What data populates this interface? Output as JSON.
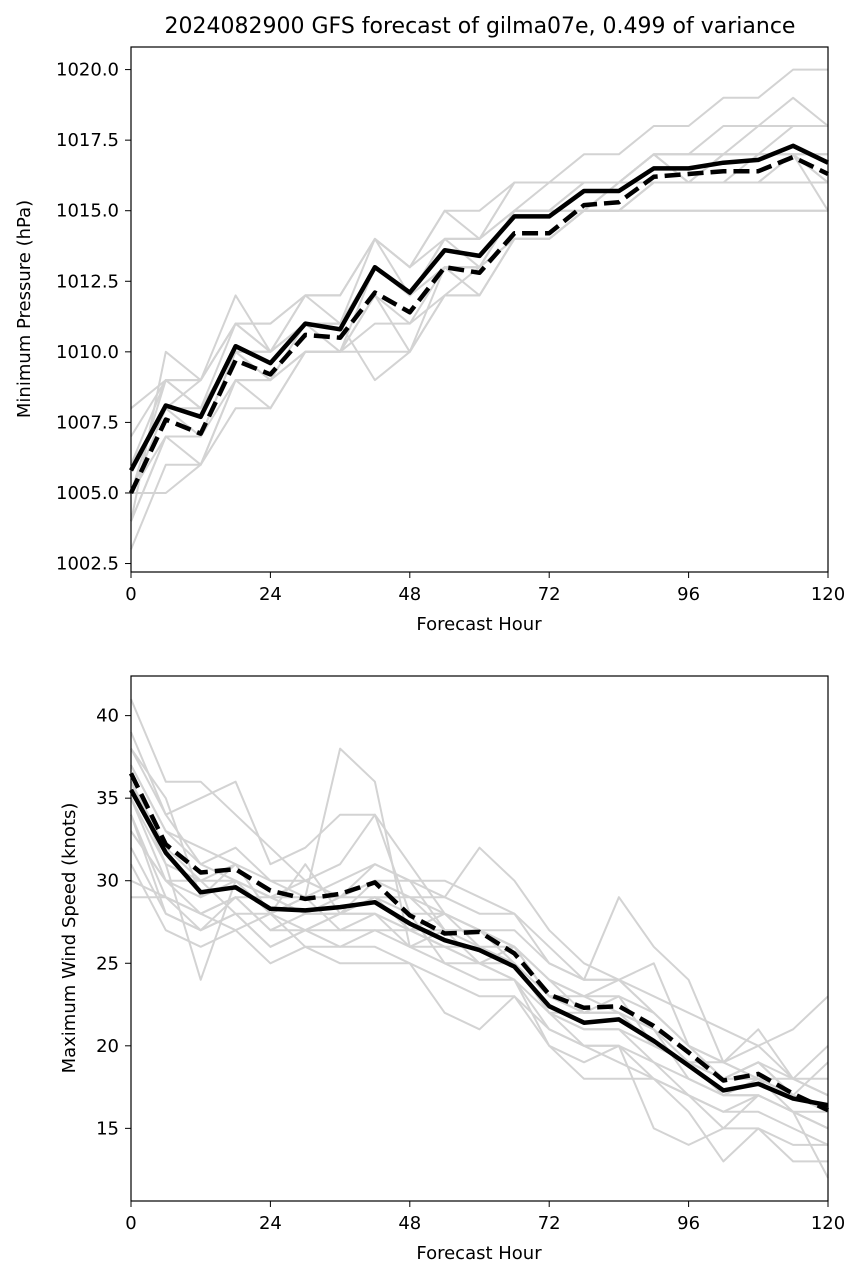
{
  "chart_data": [
    {
      "type": "line",
      "title": "2024082900 GFS forecast of gilma07e, 0.499 of variance",
      "xlabel": "Forecast Hour",
      "ylabel": "Minimum Pressure (hPa)",
      "xlim": [
        0,
        120
      ],
      "ylim": [
        1002.2,
        1020.8
      ],
      "xticks": [
        0,
        24,
        48,
        72,
        96,
        120
      ],
      "xtick_labels": [
        "0",
        "24",
        "48",
        "72",
        "96",
        "120"
      ],
      "yticks": [
        1002.5,
        1005.0,
        1007.5,
        1010.0,
        1012.5,
        1015.0,
        1017.5,
        1020.0
      ],
      "ytick_labels": [
        "1002.5",
        "1005.0",
        "1007.5",
        "1010.0",
        "1012.5",
        "1015.0",
        "1017.5",
        "1020.0"
      ],
      "x": [
        0,
        6,
        12,
        18,
        24,
        30,
        36,
        42,
        48,
        54,
        60,
        66,
        72,
        78,
        84,
        90,
        96,
        102,
        108,
        114,
        120
      ],
      "series": [
        {
          "style": "solid",
          "color": "#000000",
          "values": [
            1005.8,
            1008.1,
            1007.7,
            1010.2,
            1009.6,
            1011.0,
            1010.8,
            1013.0,
            1012.1,
            1013.6,
            1013.4,
            1014.8,
            1014.8,
            1015.7,
            1015.7,
            1016.5,
            1016.5,
            1016.7,
            1016.8,
            1017.3,
            1016.7
          ]
        },
        {
          "style": "dashed",
          "color": "#000000",
          "values": [
            1005.0,
            1007.6,
            1007.1,
            1009.7,
            1009.2,
            1010.6,
            1010.5,
            1012.1,
            1011.4,
            1013.0,
            1012.8,
            1014.2,
            1014.2,
            1015.2,
            1015.3,
            1016.2,
            1016.3,
            1016.4,
            1016.4,
            1016.9,
            1016.3
          ]
        }
      ],
      "members_color": "#d3d3d3",
      "members": [
        [
          1004,
          1010,
          1009,
          1012,
          1010,
          1012,
          1012,
          1014,
          1013,
          1015,
          1015,
          1016,
          1016,
          1017,
          1017,
          1018,
          1018,
          1019,
          1019,
          1020,
          1020
        ],
        [
          1005,
          1009,
          1008,
          1011,
          1010,
          1011,
          1011,
          1013,
          1012,
          1014,
          1014,
          1015,
          1015,
          1016,
          1016,
          1017,
          1017,
          1017,
          1018,
          1019,
          1018
        ],
        [
          1006,
          1008,
          1008,
          1010,
          1009,
          1011,
          1011,
          1013,
          1012,
          1014,
          1013,
          1015,
          1015,
          1016,
          1016,
          1017,
          1017,
          1018,
          1018,
          1018,
          1018
        ],
        [
          1005,
          1007,
          1007,
          1009,
          1009,
          1010,
          1010,
          1012,
          1011,
          1013,
          1013,
          1014,
          1014,
          1015,
          1015,
          1016,
          1016,
          1016,
          1016,
          1016,
          1016
        ],
        [
          1004,
          1007,
          1007,
          1010,
          1010,
          1011,
          1010,
          1013,
          1012,
          1013,
          1013,
          1015,
          1015,
          1015,
          1015,
          1016,
          1016,
          1016,
          1016,
          1017,
          1016
        ],
        [
          1003,
          1006,
          1006,
          1009,
          1008,
          1010,
          1010,
          1012,
          1010,
          1013,
          1012,
          1014,
          1014,
          1015,
          1015,
          1015,
          1015,
          1015,
          1015,
          1015,
          1015
        ],
        [
          1008,
          1009,
          1009,
          1011,
          1011,
          1012,
          1012,
          1014,
          1013,
          1014,
          1014,
          1016,
          1016,
          1016,
          1016,
          1017,
          1016,
          1017,
          1017,
          1017,
          1017
        ],
        [
          1006,
          1008,
          1009,
          1011,
          1010,
          1012,
          1011,
          1014,
          1012,
          1014,
          1014,
          1015,
          1016,
          1016,
          1016,
          1016,
          1016,
          1016,
          1017,
          1017,
          1015
        ],
        [
          1005,
          1005,
          1006,
          1009,
          1009,
          1010,
          1010,
          1011,
          1011,
          1012,
          1012,
          1014,
          1014,
          1015,
          1015,
          1016,
          1016,
          1016,
          1016,
          1016,
          1016
        ],
        [
          1007,
          1009,
          1008,
          1010,
          1010,
          1011,
          1011,
          1009,
          1010,
          1012,
          1013,
          1014,
          1014,
          1015,
          1016,
          1016,
          1016,
          1016,
          1016,
          1017,
          1016
        ],
        [
          1004,
          1007,
          1006,
          1008,
          1008,
          1010,
          1010,
          1010,
          1010,
          1012,
          1012,
          1014,
          1014,
          1015,
          1015,
          1015,
          1015,
          1015,
          1015,
          1015,
          1015
        ],
        [
          1006,
          1009,
          1009,
          1011,
          1011,
          1012,
          1012,
          1014,
          1013,
          1015,
          1014,
          1016,
          1016,
          1016,
          1016,
          1017,
          1017,
          1017,
          1017,
          1018,
          1018
        ],
        [
          1005,
          1008,
          1007,
          1010,
          1009,
          1011,
          1011,
          1013,
          1012,
          1013,
          1013,
          1015,
          1015,
          1015,
          1016,
          1017,
          1016,
          1017,
          1017,
          1017,
          1017
        ]
      ]
    },
    {
      "type": "line",
      "title": "",
      "xlabel": "Forecast Hour",
      "ylabel": "Maximum Wind Speed (knots)",
      "xlim": [
        0,
        120
      ],
      "ylim": [
        10.6,
        42.4
      ],
      "xticks": [
        0,
        24,
        48,
        72,
        96,
        120
      ],
      "xtick_labels": [
        "0",
        "24",
        "48",
        "72",
        "96",
        "120"
      ],
      "yticks": [
        15,
        20,
        25,
        30,
        35,
        40
      ],
      "ytick_labels": [
        "15",
        "20",
        "25",
        "30",
        "35",
        "40"
      ],
      "x": [
        0,
        6,
        12,
        18,
        24,
        30,
        36,
        42,
        48,
        54,
        60,
        66,
        72,
        78,
        84,
        90,
        96,
        102,
        108,
        114,
        120
      ],
      "series": [
        {
          "style": "solid",
          "color": "#000000",
          "values": [
            35.5,
            31.7,
            29.3,
            29.6,
            28.3,
            28.2,
            28.4,
            28.7,
            27.4,
            26.4,
            25.8,
            24.8,
            22.4,
            21.4,
            21.6,
            20.3,
            18.8,
            17.3,
            17.7,
            16.8,
            16.4
          ]
        },
        {
          "style": "dashed",
          "color": "#000000",
          "values": [
            36.5,
            32.2,
            30.5,
            30.7,
            29.4,
            28.9,
            29.2,
            29.9,
            27.9,
            26.8,
            26.9,
            25.6,
            23.1,
            22.3,
            22.4,
            21.2,
            19.6,
            17.9,
            18.3,
            17.1,
            16.1
          ]
        }
      ],
      "members_color": "#d3d3d3",
      "members": [
        [
          41,
          36,
          36,
          34,
          32,
          30,
          29,
          30,
          29,
          28,
          27,
          26,
          24,
          23,
          24,
          22,
          20,
          19,
          20,
          18,
          17
        ],
        [
          39,
          34,
          31,
          30,
          29,
          28,
          28,
          29,
          27,
          26,
          26,
          25,
          22,
          21,
          21,
          20,
          19,
          18,
          18,
          17,
          16
        ],
        [
          38,
          35,
          29,
          31,
          28,
          29,
          38,
          36,
          26,
          27,
          25,
          24,
          22,
          22,
          22,
          21,
          18,
          17,
          18,
          17,
          16
        ],
        [
          37,
          33,
          31,
          32,
          30,
          30,
          31,
          34,
          28,
          28,
          26,
          25,
          23,
          22,
          22,
          21,
          19,
          18,
          18,
          16,
          15
        ],
        [
          36,
          31,
          24,
          30,
          28,
          27,
          28,
          28,
          26,
          25,
          24,
          24,
          21,
          20,
          20,
          19,
          17,
          16,
          17,
          16,
          15
        ],
        [
          36,
          32,
          30,
          28,
          26,
          27,
          27,
          28,
          27,
          27,
          27,
          25,
          22,
          21,
          21,
          19,
          18,
          17,
          17,
          16,
          16
        ],
        [
          35,
          30,
          28,
          29,
          27,
          28,
          28,
          29,
          28,
          25,
          25,
          26,
          23,
          22,
          23,
          20,
          19,
          18,
          19,
          17,
          16
        ],
        [
          34,
          29,
          27,
          28,
          28,
          29,
          27,
          27,
          26,
          26,
          25,
          24,
          20,
          19,
          20,
          18,
          17,
          16,
          16,
          15,
          14
        ],
        [
          33,
          30,
          29,
          30,
          29,
          28,
          29,
          30,
          29,
          29,
          32,
          30,
          27,
          25,
          24,
          25,
          20,
          18,
          19,
          17,
          16
        ],
        [
          32,
          28,
          27,
          29,
          27,
          27,
          28,
          28,
          27,
          28,
          27,
          27,
          25,
          24,
          29,
          26,
          24,
          19,
          21,
          18,
          20
        ],
        [
          33,
          30,
          30,
          31,
          28,
          31,
          28,
          30,
          30,
          30,
          29,
          28,
          25,
          24,
          24,
          23,
          22,
          21,
          20,
          21,
          23
        ],
        [
          31,
          27,
          26,
          27,
          25,
          26,
          26,
          26,
          25,
          22,
          21,
          23,
          20,
          18,
          18,
          18,
          17,
          15,
          17,
          16,
          12
        ],
        [
          30,
          29,
          28,
          29,
          29,
          29,
          30,
          31,
          30,
          27,
          27,
          26,
          24,
          23,
          23,
          22,
          20,
          19,
          18,
          18,
          17
        ],
        [
          38,
          34,
          35,
          36,
          31,
          32,
          34,
          34,
          31,
          28,
          27,
          26,
          23,
          23,
          22,
          20,
          19,
          17,
          17,
          16,
          15
        ],
        [
          29,
          29,
          28,
          27,
          28,
          26,
          25,
          25,
          25,
          24,
          23,
          23,
          21,
          20,
          19,
          18,
          16,
          13,
          15,
          13,
          13
        ],
        [
          34,
          28,
          27,
          28,
          26,
          27,
          26,
          27,
          27,
          26,
          25,
          25,
          22,
          20,
          20,
          15,
          14,
          15,
          15,
          14,
          14
        ],
        [
          37,
          33,
          32,
          31,
          30,
          29,
          29,
          31,
          30,
          29,
          28,
          28,
          26,
          24,
          24,
          22,
          20,
          18,
          19,
          18,
          18
        ],
        [
          35,
          31,
          30,
          30,
          29,
          30,
          29,
          29,
          29,
          27,
          26,
          26,
          24,
          22,
          22,
          21,
          19,
          19,
          18,
          17,
          19
        ]
      ]
    }
  ]
}
